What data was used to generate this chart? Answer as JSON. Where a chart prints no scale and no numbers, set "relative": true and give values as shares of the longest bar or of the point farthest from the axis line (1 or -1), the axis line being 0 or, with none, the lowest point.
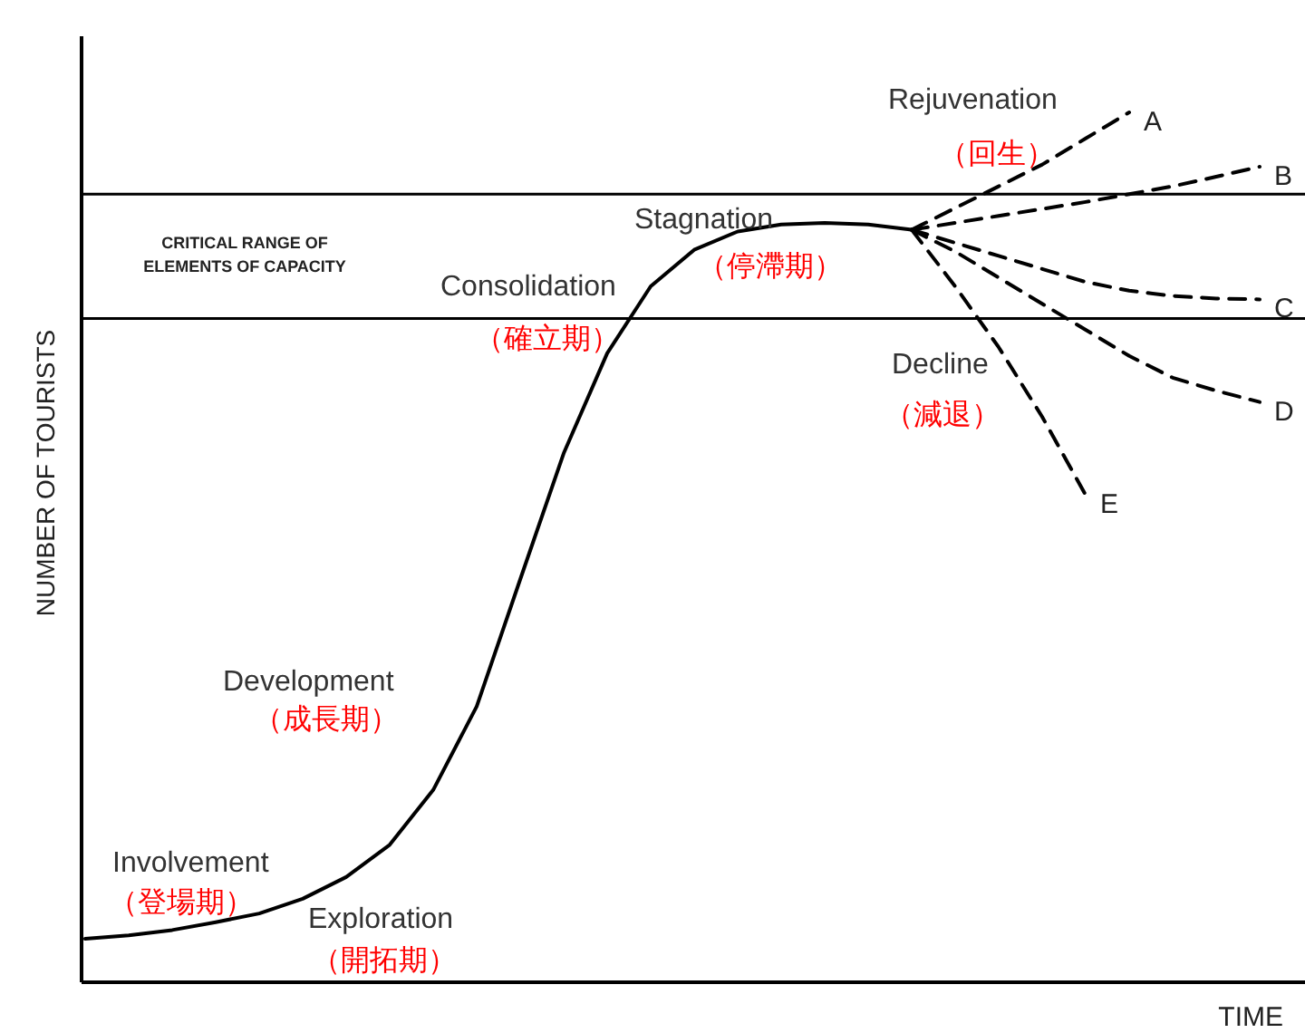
{
  "chart_data": {
    "type": "line",
    "relative": true,
    "xlabel": "TIME",
    "ylabel": "NUMBER OF TOURISTS",
    "marker": "none",
    "categories": [
      null,
      null,
      null,
      null,
      null,
      null,
      null,
      null,
      null,
      null,
      null,
      null,
      null,
      null,
      null,
      null,
      null,
      null,
      null,
      null,
      null,
      null,
      null,
      null,
      null,
      null,
      null,
      null
    ],
    "series": [
      {
        "color": "#000000",
        "line_style": "solid",
        "values": [
          0.05,
          0.054,
          0.06,
          0.069,
          0.079,
          0.096,
          0.121,
          0.158,
          0.221,
          0.317,
          0.463,
          0.608,
          0.723,
          0.8,
          0.842,
          0.863,
          0.871,
          0.873,
          0.871,
          0.865,
          null,
          null,
          null,
          null,
          null,
          null,
          null,
          null
        ]
      },
      {
        "name": "A",
        "color": "#000000",
        "line_style": "dashed",
        "values": [
          null,
          null,
          null,
          null,
          null,
          null,
          null,
          null,
          null,
          null,
          null,
          null,
          null,
          null,
          null,
          null,
          null,
          null,
          null,
          0.865,
          0.89,
          0.915,
          0.94,
          0.97,
          1.0,
          null,
          null,
          null
        ]
      },
      {
        "name": "B",
        "color": "#000000",
        "line_style": "dashed",
        "values": [
          null,
          null,
          null,
          null,
          null,
          null,
          null,
          null,
          null,
          null,
          null,
          null,
          null,
          null,
          null,
          null,
          null,
          null,
          null,
          0.865,
          0.873,
          0.881,
          0.889,
          0.897,
          0.906,
          0.915,
          0.926,
          0.9375
        ]
      },
      {
        "name": "C",
        "color": "#000000",
        "line_style": "dashed",
        "values": [
          null,
          null,
          null,
          null,
          null,
          null,
          null,
          null,
          null,
          null,
          null,
          null,
          null,
          null,
          null,
          null,
          null,
          null,
          null,
          0.865,
          0.85,
          0.835,
          0.82,
          0.805,
          0.795,
          0.789,
          0.786,
          0.785
        ]
      },
      {
        "name": "D",
        "color": "#000000",
        "line_style": "dashed",
        "values": [
          null,
          null,
          null,
          null,
          null,
          null,
          null,
          null,
          null,
          null,
          null,
          null,
          null,
          null,
          null,
          null,
          null,
          null,
          null,
          0.865,
          0.84,
          0.81,
          0.78,
          0.75,
          0.72,
          0.695,
          0.68,
          0.667
        ]
      },
      {
        "name": "E",
        "color": "#000000",
        "line_style": "dashed",
        "values": [
          null,
          null,
          null,
          null,
          null,
          null,
          null,
          null,
          null,
          null,
          null,
          null,
          null,
          null,
          null,
          null,
          null,
          null,
          null,
          0.865,
          0.8,
          0.73,
          0.65,
          0.56,
          null,
          null,
          null,
          null
        ]
      }
    ],
    "ref_lines": [
      {
        "axis": "y",
        "value": 0.906,
        "color": "#000000"
      },
      {
        "axis": "y",
        "value": 0.763,
        "color": "#000000"
      }
    ],
    "annotations": [
      "Exploration",
      "（開拓期）",
      "Involvement",
      "（登場期）",
      "Development",
      "（成長期）",
      "Consolidation",
      "（確立期）",
      "Stagnation",
      "（停滯期）",
      "Rejuvenation",
      "（回生）",
      "Decline",
      "（減退）",
      "CRITICAL RANGE OF ELEMENTS OF CAPACITY"
    ]
  }
}
